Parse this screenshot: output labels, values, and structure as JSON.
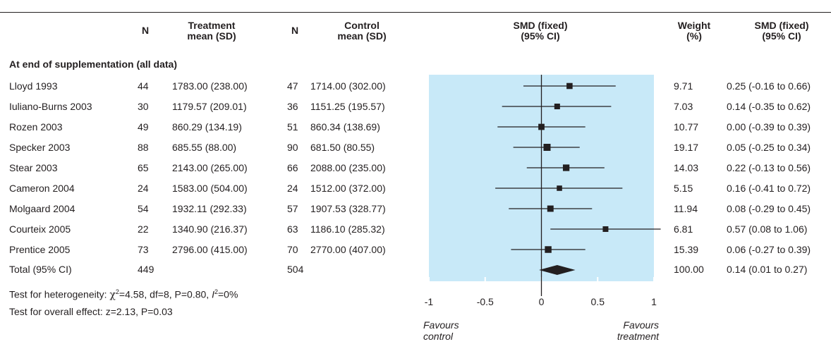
{
  "colors": {
    "plot_bg": "#c8e9f8",
    "ink": "#231f20",
    "tick": "#ffffff"
  },
  "header": {
    "n1": "N",
    "treat1": "Treatment",
    "treat2": "mean (SD)",
    "n2": "N",
    "ctrl1": "Control",
    "ctrl2": "mean (SD)",
    "smd1": "SMD (fixed)",
    "smd2": "(95% CI)",
    "weight1": "Weight",
    "weight2": "(%)",
    "smdci1": "SMD (fixed)",
    "smdci2": "(95% CI)"
  },
  "subgroup": "At end of supplementation (all data)",
  "studies": [
    {
      "name": "Lloyd 1993",
      "n1": "44",
      "t": "1783.00 (238.00)",
      "n2": "47",
      "c": "1714.00 (302.00)",
      "w": "9.71",
      "ci": "0.25 (-0.16 to 0.66)"
    },
    {
      "name": "Iuliano-Burns 2003",
      "n1": "30",
      "t": "1179.57 (209.01)",
      "n2": "36",
      "c": "1151.25 (195.57)",
      "w": "7.03",
      "ci": "0.14 (-0.35 to 0.62)"
    },
    {
      "name": "Rozen 2003",
      "n1": "49",
      "t": "860.29 (134.19)",
      "n2": "51",
      "c": "860.34 (138.69)",
      "w": "10.77",
      "ci": "0.00 (-0.39 to 0.39)"
    },
    {
      "name": "Specker 2003",
      "n1": "88",
      "t": "685.55 (88.00)",
      "n2": "90",
      "c": "681.50 (80.55)",
      "w": "19.17",
      "ci": "0.05 (-0.25 to 0.34)"
    },
    {
      "name": "Stear 2003",
      "n1": "65",
      "t": "2143.00 (265.00)",
      "n2": "66",
      "c": "2088.00 (235.00)",
      "w": "14.03",
      "ci": "0.22 (-0.13 to 0.56)"
    },
    {
      "name": "Cameron 2004",
      "n1": "24",
      "t": "1583.00 (504.00)",
      "n2": "24",
      "c": "1512.00 (372.00)",
      "w": "5.15",
      "ci": "0.16 (-0.41 to 0.72)"
    },
    {
      "name": "Molgaard 2004",
      "n1": "54",
      "t": "1932.11 (292.33)",
      "n2": "57",
      "c": "1907.53 (328.77)",
      "w": "11.94",
      "ci": "0.08 (-0.29 to 0.45)"
    },
    {
      "name": "Courteix 2005",
      "n1": "22",
      "t": "1340.90 (216.37)",
      "n2": "63",
      "c": "1186.10 (285.32)",
      "w": "6.81",
      "ci": "0.57 (0.08 to 1.06)"
    },
    {
      "name": "Prentice 2005",
      "n1": "73",
      "t": "2796.00 (415.00)",
      "n2": "70",
      "c": "2770.00 (407.00)",
      "w": "15.39",
      "ci": "0.06 (-0.27 to 0.39)"
    }
  ],
  "total": {
    "name": "Total (95% CI)",
    "n1": "449",
    "n2": "504",
    "w": "100.00",
    "ci": "0.14 (0.01 to 0.27)"
  },
  "heterogeneity": {
    "prefix": "Test for heterogeneity: ",
    "chi": "χ",
    "chi_sup": "2",
    "middle": "=4.58, df=8, P=0.80, ",
    "i": "I",
    "i_sup": "2",
    "suffix": "=0%"
  },
  "overall": "Test for overall effect: z=2.13, P=0.03",
  "favours_left": [
    "Favours",
    "control"
  ],
  "favours_right": [
    "Favours",
    "treatment"
  ],
  "chart_data": {
    "type": "forest",
    "title": "",
    "xlabel": "",
    "xlim": [
      -1,
      1
    ],
    "xticks": [
      "-1",
      "-0.5",
      "0",
      "0.5",
      "1"
    ],
    "null_line": 0,
    "studies": [
      {
        "label": "Lloyd 1993",
        "est": 0.25,
        "lo": -0.16,
        "hi": 0.66,
        "weight": 9.71
      },
      {
        "label": "Iuliano-Burns 2003",
        "est": 0.14,
        "lo": -0.35,
        "hi": 0.62,
        "weight": 7.03
      },
      {
        "label": "Rozen 2003",
        "est": 0.0,
        "lo": -0.39,
        "hi": 0.39,
        "weight": 10.77
      },
      {
        "label": "Specker 2003",
        "est": 0.05,
        "lo": -0.25,
        "hi": 0.34,
        "weight": 19.17
      },
      {
        "label": "Stear 2003",
        "est": 0.22,
        "lo": -0.13,
        "hi": 0.56,
        "weight": 14.03
      },
      {
        "label": "Cameron 2004",
        "est": 0.16,
        "lo": -0.41,
        "hi": 0.72,
        "weight": 5.15
      },
      {
        "label": "Molgaard 2004",
        "est": 0.08,
        "lo": -0.29,
        "hi": 0.45,
        "weight": 11.94
      },
      {
        "label": "Courteix 2005",
        "est": 0.57,
        "lo": 0.08,
        "hi": 1.06,
        "weight": 6.81
      },
      {
        "label": "Prentice 2005",
        "est": 0.06,
        "lo": -0.27,
        "hi": 0.39,
        "weight": 15.39
      }
    ],
    "pooled": {
      "label": "Total (95% CI)",
      "est": 0.14,
      "lo": 0.01,
      "hi": 0.27
    }
  }
}
